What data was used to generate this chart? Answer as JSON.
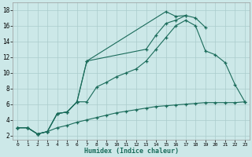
{
  "xlabel": "Humidex (Indice chaleur)",
  "bg_color": "#cce8e8",
  "grid_color": "#aacccc",
  "line_color": "#1a6b5a",
  "xlim": [
    -0.5,
    23.5
  ],
  "ylim": [
    1.5,
    19
  ],
  "xticks": [
    0,
    1,
    2,
    3,
    4,
    5,
    6,
    7,
    8,
    9,
    10,
    11,
    12,
    13,
    14,
    15,
    16,
    17,
    18,
    19,
    20,
    21,
    22,
    23
  ],
  "yticks": [
    2,
    4,
    6,
    8,
    10,
    12,
    14,
    16,
    18
  ],
  "line1_x": [
    0,
    1,
    2,
    3,
    4,
    5,
    6,
    7,
    8,
    9,
    10,
    11,
    12,
    13,
    14,
    15,
    16,
    17,
    18,
    19,
    20,
    21,
    22,
    23
  ],
  "line1_y": [
    3.0,
    3.0,
    2.2,
    2.5,
    3.0,
    3.3,
    3.7,
    4.0,
    4.3,
    4.6,
    4.9,
    5.1,
    5.3,
    5.5,
    5.7,
    5.8,
    5.9,
    6.0,
    6.1,
    6.2,
    6.2,
    6.2,
    6.2,
    6.3
  ],
  "line2_x": [
    0,
    1,
    2,
    3,
    4,
    5,
    6,
    7,
    8,
    9,
    10,
    11,
    12,
    13,
    14,
    15,
    16,
    17,
    18,
    19,
    20,
    21,
    22,
    23
  ],
  "line2_y": [
    3.0,
    3.0,
    2.2,
    2.5,
    4.8,
    5.0,
    6.3,
    6.3,
    8.2,
    8.8,
    9.5,
    10.0,
    10.5,
    11.5,
    13.0,
    14.5,
    16.0,
    16.7,
    16.0,
    12.8,
    12.3,
    11.3,
    8.5,
    6.3
  ],
  "line3_x": [
    0,
    1,
    2,
    3,
    4,
    5,
    6,
    7,
    13,
    14,
    15,
    16,
    17,
    18,
    19
  ],
  "line3_y": [
    3.0,
    3.0,
    2.2,
    2.5,
    4.8,
    5.0,
    6.3,
    11.5,
    13.0,
    14.8,
    16.3,
    16.7,
    17.3,
    17.0,
    15.8
  ],
  "line4_x": [
    0,
    1,
    2,
    3,
    4,
    5,
    6,
    7,
    15,
    16,
    17
  ],
  "line4_y": [
    3.0,
    3.0,
    2.2,
    2.5,
    4.8,
    5.0,
    6.3,
    11.5,
    17.8,
    17.2,
    17.3
  ]
}
